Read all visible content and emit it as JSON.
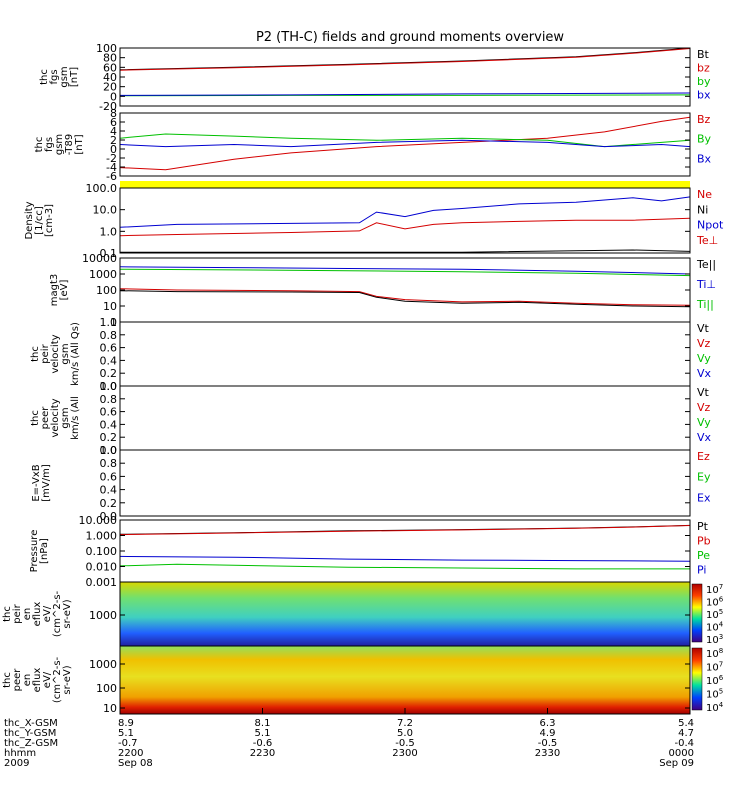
{
  "title": "P2 (TH-C) fields and ground moments overview",
  "colors": {
    "black": "#000000",
    "red": "#d40000",
    "green": "#00c000",
    "blue": "#0000d0",
    "yellow": "#ffff00"
  },
  "chart_data": [
    {
      "id": "fgs",
      "type": "line",
      "ylabel": [
        "thc",
        "fgs",
        "gsm",
        "[nT]"
      ],
      "yticks": [
        "100",
        "80",
        "60",
        "40",
        "20",
        "0",
        "-20"
      ],
      "ylim": [
        -20,
        100
      ],
      "legend": [
        {
          "text": "Bt",
          "color": "black"
        },
        {
          "text": "bz",
          "color": "red"
        },
        {
          "text": "by",
          "color": "green"
        },
        {
          "text": "bx",
          "color": "blue"
        }
      ],
      "series": [
        {
          "color": "black",
          "x": [
            0,
            0.2,
            0.4,
            0.6,
            0.8,
            0.9,
            1.0
          ],
          "y": [
            55,
            60,
            66,
            73,
            82,
            90,
            100
          ]
        },
        {
          "color": "red",
          "x": [
            0,
            0.2,
            0.4,
            0.6,
            0.8,
            0.9,
            1.0
          ],
          "y": [
            54,
            59,
            65,
            72,
            81,
            89,
            99
          ]
        },
        {
          "color": "green",
          "x": [
            0,
            0.3,
            0.6,
            1.0
          ],
          "y": [
            1,
            2,
            2,
            3
          ]
        },
        {
          "color": "blue",
          "x": [
            0,
            0.3,
            0.6,
            1.0
          ],
          "y": [
            2,
            3,
            5,
            7
          ]
        }
      ]
    },
    {
      "id": "fgs-t89",
      "type": "line",
      "ylabel": [
        "thc",
        "fgs",
        "gsm",
        "-T89",
        "[nT]"
      ],
      "yticks": [
        "8",
        "6",
        "4",
        "2",
        "0",
        "-2",
        "-4",
        "-6"
      ],
      "ylim": [
        -7,
        8
      ],
      "legend": [
        {
          "text": "Bz",
          "color": "red"
        },
        {
          "text": "By",
          "color": "green"
        },
        {
          "text": "Bx",
          "color": "blue"
        }
      ],
      "series": [
        {
          "color": "red",
          "x": [
            0,
            0.08,
            0.2,
            0.3,
            0.45,
            0.6,
            0.75,
            0.85,
            0.95,
            1.0
          ],
          "y": [
            -5,
            -5.5,
            -3,
            -1.5,
            0,
            1,
            2,
            3.5,
            6,
            7
          ]
        },
        {
          "color": "green",
          "x": [
            0,
            0.08,
            0.2,
            0.3,
            0.45,
            0.6,
            0.75,
            0.85,
            0.95,
            1.0
          ],
          "y": [
            2,
            3,
            2.5,
            2,
            1.5,
            2,
            1.5,
            0,
            1,
            1.5
          ]
        },
        {
          "color": "blue",
          "x": [
            0,
            0.08,
            0.2,
            0.3,
            0.45,
            0.6,
            0.75,
            0.85,
            0.95,
            1.0
          ],
          "y": [
            0.5,
            0,
            0.5,
            0,
            1,
            1.5,
            1,
            0,
            0.5,
            0
          ]
        }
      ]
    },
    {
      "id": "density",
      "type": "line",
      "scale": "log",
      "ylabel": [
        "Density",
        "[1/cc]",
        "[cm-3]"
      ],
      "yticks": [
        "100.0",
        "10.0",
        "1.0",
        "0.1"
      ],
      "ylim": [
        0.1,
        150
      ],
      "legend": [
        {
          "text": "Ne",
          "color": "red"
        },
        {
          "text": "Ni",
          "color": "black"
        },
        {
          "text": "Npot",
          "color": "blue"
        },
        {
          "text": "Te⊥",
          "color": "red"
        }
      ],
      "series": [
        {
          "color": "blue",
          "x": [
            0,
            0.1,
            0.3,
            0.42,
            0.45,
            0.5,
            0.55,
            0.6,
            0.7,
            0.8,
            0.9,
            0.95,
            1.0
          ],
          "y": [
            1.8,
            2.5,
            2.8,
            3,
            10,
            6,
            12,
            15,
            25,
            30,
            50,
            35,
            55
          ]
        },
        {
          "color": "red",
          "x": [
            0,
            0.1,
            0.3,
            0.42,
            0.45,
            0.5,
            0.55,
            0.6,
            0.7,
            0.8,
            0.9,
            1.0
          ],
          "y": [
            0.7,
            0.8,
            1,
            1.2,
            3,
            1.5,
            2.5,
            3,
            3.5,
            4,
            4,
            5
          ]
        },
        {
          "color": "black",
          "x": [
            0,
            0.3,
            0.6,
            0.9,
            1.0
          ],
          "y": [
            0.11,
            0.11,
            0.11,
            0.14,
            0.12
          ]
        }
      ]
    },
    {
      "id": "temp",
      "type": "line",
      "scale": "log",
      "ylabel": [
        "magt3",
        "[eV]"
      ],
      "yticks": [
        "10000",
        "1000",
        "100",
        "10",
        "1"
      ],
      "ylim": [
        1,
        10000
      ],
      "legend": [
        {
          "text": "Te||",
          "color": "black"
        },
        {
          "text": "Ti⊥",
          "color": "blue"
        },
        {
          "text": "Ti||",
          "color": "green"
        }
      ],
      "series": [
        {
          "color": "blue",
          "x": [
            0,
            0.2,
            0.4,
            0.6,
            0.8,
            1.0
          ],
          "y": [
            2800,
            2500,
            2200,
            2000,
            1500,
            1000
          ]
        },
        {
          "color": "green",
          "x": [
            0,
            0.2,
            0.4,
            0.6,
            0.8,
            1.0
          ],
          "y": [
            2000,
            1800,
            1600,
            1400,
            1100,
            800
          ]
        },
        {
          "color": "red",
          "x": [
            0,
            0.1,
            0.3,
            0.42,
            0.45,
            0.5,
            0.6,
            0.7,
            0.8,
            0.9,
            1.0
          ],
          "y": [
            120,
            100,
            90,
            80,
            40,
            25,
            18,
            20,
            15,
            12,
            11
          ]
        },
        {
          "color": "black",
          "x": [
            0,
            0.1,
            0.3,
            0.42,
            0.45,
            0.5,
            0.6,
            0.7,
            0.8,
            0.9,
            1.0
          ],
          "y": [
            90,
            80,
            75,
            70,
            35,
            20,
            15,
            17,
            13,
            10,
            9
          ]
        }
      ]
    },
    {
      "id": "peir-vel",
      "type": "line",
      "ylabel": [
        "thc",
        "peir",
        "velocity",
        "gsm",
        "km/s (All Qs)"
      ],
      "yticks": [
        "1.0",
        "0.8",
        "0.6",
        "0.4",
        "0.2",
        "0.0"
      ],
      "ylim": [
        0,
        1
      ],
      "legend": [
        {
          "text": "Vt",
          "color": "black"
        },
        {
          "text": "Vz",
          "color": "red"
        },
        {
          "text": "Vy",
          "color": "green"
        },
        {
          "text": "Vx",
          "color": "blue"
        }
      ],
      "series": []
    },
    {
      "id": "peer-vel",
      "type": "line",
      "ylabel": [
        "thc",
        "peer",
        "velocity",
        "gsm",
        "km/s (All"
      ],
      "yticks": [
        "1.0",
        "0.8",
        "0.6",
        "0.4",
        "0.2",
        "0.0"
      ],
      "ylim": [
        0,
        1
      ],
      "legend": [
        {
          "text": "Vt",
          "color": "black"
        },
        {
          "text": "Vz",
          "color": "red"
        },
        {
          "text": "Vy",
          "color": "green"
        },
        {
          "text": "Vx",
          "color": "blue"
        }
      ],
      "series": []
    },
    {
      "id": "efield",
      "type": "line",
      "ylabel": [
        "E=-VxB",
        "[mV/m]"
      ],
      "yticks": [
        "1.0",
        "0.8",
        "0.6",
        "0.4",
        "0.2",
        "0.0"
      ],
      "ylim": [
        0,
        1
      ],
      "legend": [
        {
          "text": "Ez",
          "color": "red"
        },
        {
          "text": "Ey",
          "color": "green"
        },
        {
          "text": "Ex",
          "color": "blue"
        }
      ],
      "series": []
    },
    {
      "id": "pressure",
      "type": "line",
      "scale": "log",
      "ylabel": [
        "Pressure",
        "[nPa]"
      ],
      "yticks": [
        "10.000",
        "1.000",
        "0.100",
        "0.010",
        "0.001"
      ],
      "ylim": [
        0.001,
        10
      ],
      "legend": [
        {
          "text": "Pt",
          "color": "black"
        },
        {
          "text": "Pb",
          "color": "red"
        },
        {
          "text": "Pe",
          "color": "green"
        },
        {
          "text": "Pi",
          "color": "blue"
        }
      ],
      "series": [
        {
          "color": "black",
          "x": [
            0,
            0.2,
            0.4,
            0.6,
            0.8,
            0.9,
            1.0
          ],
          "y": [
            1.2,
            1.5,
            2,
            2.4,
            3,
            3.6,
            4.5
          ]
        },
        {
          "color": "red",
          "x": [
            0,
            0.2,
            0.4,
            0.6,
            0.8,
            0.9,
            1.0
          ],
          "y": [
            1.15,
            1.45,
            1.9,
            2.3,
            2.9,
            3.5,
            4.4
          ]
        },
        {
          "color": "blue",
          "x": [
            0,
            0.2,
            0.4,
            0.6,
            0.8,
            1.0
          ],
          "y": [
            0.045,
            0.04,
            0.03,
            0.026,
            0.024,
            0.022
          ]
        },
        {
          "color": "green",
          "x": [
            0,
            0.1,
            0.2,
            0.4,
            0.6,
            0.8,
            1.0
          ],
          "y": [
            0.011,
            0.014,
            0.012,
            0.009,
            0.008,
            0.007,
            0.007
          ]
        }
      ]
    },
    {
      "id": "peir-spec",
      "type": "heatmap",
      "ylabel": [
        "thc",
        "peir",
        "en",
        "eflux",
        "eV/",
        "(cm^2-s-",
        "sr-eV)"
      ],
      "yticks": [
        "1000"
      ],
      "colorbar": [
        "10^7",
        "10^6",
        "10^5",
        "10^4",
        "10^3"
      ]
    },
    {
      "id": "peer-spec",
      "type": "heatmap",
      "ylabel": [
        "thc",
        "peer",
        "en",
        "eflux",
        "eV/",
        "(cm^2-s-",
        "sr-eV)"
      ],
      "yticks": [
        "1000",
        "100",
        "10"
      ],
      "colorbar": [
        "10^8",
        "10^7",
        "10^6",
        "10^5",
        "10^4"
      ]
    }
  ],
  "xaxis": {
    "rows": [
      {
        "label": "thc_X-GSM",
        "values": [
          "8.9",
          "8.1",
          "7.2",
          "6.3",
          "5.4"
        ]
      },
      {
        "label": "thc_Y-GSM",
        "values": [
          "5.1",
          "5.1",
          "5.0",
          "4.9",
          "4.7"
        ]
      },
      {
        "label": "thc_Z-GSM",
        "values": [
          "-0.7",
          "-0.6",
          "-0.5",
          "-0.5",
          "-0.4"
        ]
      },
      {
        "label": "hhmm",
        "values": [
          "2200",
          "2230",
          "2300",
          "2330",
          "0000"
        ]
      },
      {
        "label": "2009",
        "values": [
          "Sep 08",
          "",
          "",
          "",
          "Sep 09"
        ]
      }
    ]
  }
}
